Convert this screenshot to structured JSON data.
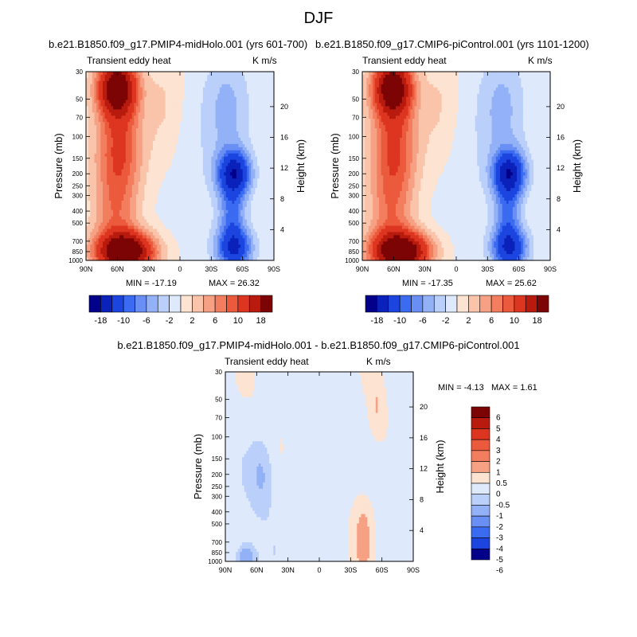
{
  "figure": {
    "title": "DJF"
  },
  "chart_data": [
    {
      "type": "heatmap",
      "title": "b.e21.B1850.f09_g17.PMIP4-midHolo.001 (yrs 601-700)",
      "left_subtitle": "Transient eddy heat",
      "right_subtitle": "K m/s",
      "xlabel": "",
      "ylabel": "Pressure (mb)",
      "y2label": "Height (km)",
      "x_ticks": [
        "90N",
        "60N",
        "30N",
        "0",
        "30S",
        "60S",
        "90S"
      ],
      "x_values": [
        90,
        60,
        30,
        0,
        -30,
        -60,
        -90
      ],
      "y_ticks": [
        "30",
        "50",
        "70",
        "100",
        "150",
        "200",
        "250",
        "300",
        "400",
        "500",
        "700",
        "850",
        "1000"
      ],
      "y_values": [
        30,
        50,
        70,
        100,
        150,
        200,
        250,
        300,
        400,
        500,
        700,
        850,
        1000
      ],
      "y2_ticks": [
        "20",
        "16",
        "12",
        "8",
        "4"
      ],
      "y2_values": [
        20,
        16,
        12,
        8,
        4
      ],
      "min_label": "MIN = -17.19",
      "max_label": "MAX =  26.32",
      "min": -17.19,
      "max": 26.32,
      "features": [
        {
          "name": "NH positive max (upper)",
          "lat": 60,
          "p": 45,
          "value": 22
        },
        {
          "name": "NH positive max (lower)",
          "lat": 50,
          "p": 850,
          "value": 26
        },
        {
          "name": "SH negative min (upper)",
          "lat": -50,
          "p": 200,
          "value": -17
        },
        {
          "name": "SH negative min (lower)",
          "lat": -50,
          "p": 780,
          "value": -14
        }
      ]
    },
    {
      "type": "heatmap",
      "title": "b.e21.B1850.f09_g17.CMIP6-piControl.001 (yrs 1101-1200)",
      "left_subtitle": "Transient eddy heat",
      "right_subtitle": "K m/s",
      "xlabel": "",
      "ylabel": "Pressure (mb)",
      "y2label": "Height (km)",
      "x_ticks": [
        "90N",
        "60N",
        "30N",
        "0",
        "30S",
        "60S",
        "90S"
      ],
      "x_values": [
        90,
        60,
        30,
        0,
        -30,
        -60,
        -90
      ],
      "y_ticks": [
        "30",
        "50",
        "70",
        "100",
        "150",
        "200",
        "250",
        "300",
        "400",
        "500",
        "700",
        "850",
        "1000"
      ],
      "y_values": [
        30,
        50,
        70,
        100,
        150,
        200,
        250,
        300,
        400,
        500,
        700,
        850,
        1000
      ],
      "y2_ticks": [
        "20",
        "16",
        "12",
        "8",
        "4"
      ],
      "y2_values": [
        20,
        16,
        12,
        8,
        4
      ],
      "min_label": "MIN = -17.35",
      "max_label": "MAX =  25.62",
      "min": -17.35,
      "max": 25.62,
      "features": [
        {
          "name": "NH positive max (upper)",
          "lat": 60,
          "p": 45,
          "value": 21
        },
        {
          "name": "NH positive max (lower)",
          "lat": 50,
          "p": 850,
          "value": 25
        },
        {
          "name": "SH negative min (upper)",
          "lat": -50,
          "p": 200,
          "value": -17
        },
        {
          "name": "SH negative min (lower)",
          "lat": -50,
          "p": 780,
          "value": -14
        }
      ]
    },
    {
      "type": "heatmap",
      "title": "b.e21.B1850.f09_g17.PMIP4-midHolo.001 - b.e21.B1850.f09_g17.CMIP6-piControl.001",
      "left_subtitle": "Transient eddy heat",
      "right_subtitle": "K m/s",
      "xlabel": "",
      "ylabel": "Pressure (mb)",
      "y2label": "Height (km)",
      "x_ticks": [
        "90N",
        "60N",
        "30N",
        "0",
        "30S",
        "60S",
        "90S"
      ],
      "x_values": [
        90,
        60,
        30,
        0,
        -30,
        -60,
        -90
      ],
      "y_ticks": [
        "30",
        "50",
        "70",
        "100",
        "150",
        "200",
        "250",
        "300",
        "400",
        "500",
        "700",
        "850",
        "1000"
      ],
      "y_values": [
        30,
        50,
        70,
        100,
        150,
        200,
        250,
        300,
        400,
        500,
        700,
        850,
        1000
      ],
      "y2_ticks": [
        "20",
        "16",
        "12",
        "8",
        "4"
      ],
      "y2_values": [
        20,
        16,
        12,
        8,
        4
      ],
      "min_label": "MIN =  -4.13",
      "max_label": "MAX =   1.61",
      "min": -4.13,
      "max": 1.61
    }
  ],
  "colorbar_top": {
    "orientation": "horizontal",
    "labels": [
      "-18",
      "-10",
      "-6",
      "-2",
      "2",
      "6",
      "10",
      "18"
    ],
    "label_box_index": [
      1,
      3,
      5,
      7,
      9,
      11,
      13,
      15
    ],
    "colors": [
      "#03008a",
      "#0a21ba",
      "#1c45e0",
      "#3a6bf0",
      "#6a8ff4",
      "#93b1f7",
      "#bad0fa",
      "#dfe9fc",
      "#fde3d1",
      "#f9c4aa",
      "#f6a184",
      "#f27e5f",
      "#ec5a3d",
      "#dc3520",
      "#b81b0e",
      "#7d0404"
    ]
  },
  "colorbar_diff": {
    "orientation": "vertical",
    "labels": [
      "6",
      "5",
      "4",
      "3",
      "2",
      "1",
      "0.5",
      "0",
      "-0.5",
      "-1",
      "-2",
      "-3",
      "-4",
      "-5",
      "-6"
    ],
    "colors": [
      "#7d0404",
      "#b81b0e",
      "#dc3520",
      "#ec5a3d",
      "#f27e5f",
      "#f6a184",
      "#fde3d1",
      "#dfe9fc",
      "#bad0fa",
      "#93b1f7",
      "#6a8ff4",
      "#3a6bf0",
      "#1c45e0",
      "#03008a"
    ]
  }
}
